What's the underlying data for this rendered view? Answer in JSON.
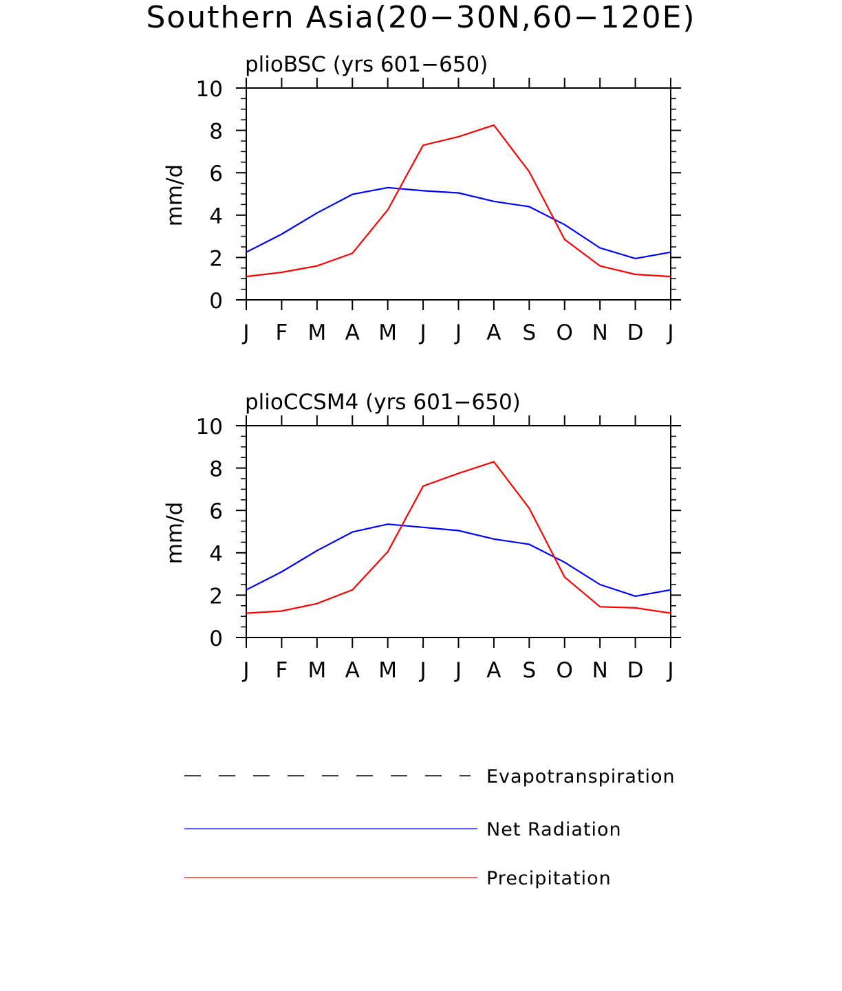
{
  "figure": {
    "title": "Southern Asia(20−30N,60−120E)"
  },
  "chart_data": [
    {
      "type": "line",
      "title": "plioBSC (yrs 601−650)",
      "xlabel": "",
      "ylabel": "mm/d",
      "ylim": [
        0,
        10
      ],
      "y_ticks": [
        "0",
        "2",
        "4",
        "6",
        "8",
        "10"
      ],
      "categories": [
        "J",
        "F",
        "M",
        "A",
        "M",
        "J",
        "J",
        "A",
        "S",
        "O",
        "N",
        "D",
        "J"
      ],
      "series": [
        {
          "name": "Net Radiation",
          "color": "#0000ff",
          "values": [
            2.25,
            3.1,
            4.1,
            4.98,
            5.3,
            5.15,
            5.05,
            4.65,
            4.4,
            3.55,
            2.45,
            1.95,
            2.25
          ]
        },
        {
          "name": "Precipitation",
          "color": "#ff0000",
          "values": [
            1.1,
            1.3,
            1.6,
            2.2,
            4.25,
            7.3,
            7.7,
            8.25,
            6.05,
            2.85,
            1.6,
            1.2,
            1.1
          ]
        }
      ]
    },
    {
      "type": "line",
      "title": "plioCCSM4 (yrs 601−650)",
      "xlabel": "",
      "ylabel": "mm/d",
      "ylim": [
        0,
        10
      ],
      "y_ticks": [
        "0",
        "2",
        "4",
        "6",
        "8",
        "10"
      ],
      "categories": [
        "J",
        "F",
        "M",
        "A",
        "M",
        "J",
        "J",
        "A",
        "S",
        "O",
        "N",
        "D",
        "J"
      ],
      "series": [
        {
          "name": "Net Radiation",
          "color": "#0000ff",
          "values": [
            2.25,
            3.1,
            4.1,
            4.98,
            5.35,
            5.2,
            5.05,
            4.65,
            4.4,
            3.55,
            2.5,
            1.95,
            2.25
          ]
        },
        {
          "name": "Precipitation",
          "color": "#ff0000",
          "values": [
            1.15,
            1.25,
            1.6,
            2.25,
            4.05,
            7.15,
            7.75,
            8.3,
            6.1,
            2.85,
            1.45,
            1.4,
            1.15
          ]
        }
      ]
    }
  ],
  "legend": [
    {
      "label": "Evapotranspiration",
      "style": "dashed",
      "color": "#000000"
    },
    {
      "label": "Net Radiation",
      "style": "solid",
      "color": "#0000ff"
    },
    {
      "label": "Precipitation",
      "style": "solid",
      "color": "#ff0000"
    }
  ]
}
